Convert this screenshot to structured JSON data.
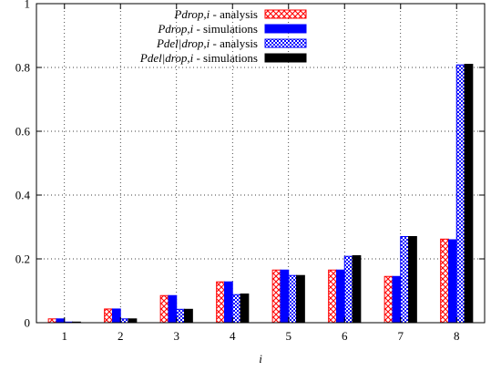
{
  "chart_data": {
    "type": "bar",
    "categories": [
      "1",
      "2",
      "3",
      "4",
      "5",
      "6",
      "7",
      "8"
    ],
    "xlabel": "i",
    "ylabel": "",
    "ylim": [
      0,
      1
    ],
    "yticks": [
      "0",
      "0.2",
      "0.4",
      "0.6",
      "0.8",
      "1"
    ],
    "grid": true,
    "legend_position": "top-center",
    "series": [
      {
        "name_italic": "Pdrop,i",
        "name_rest": " - analysis",
        "pattern": "crosshatch",
        "color": "#ff0000",
        "values": [
          0.012,
          0.043,
          0.085,
          0.128,
          0.165,
          0.165,
          0.145,
          0.262
        ]
      },
      {
        "name_italic": "Pdrop,i",
        "name_rest": " - simulations",
        "pattern": "solid",
        "color": "#0000ff",
        "values": [
          0.012,
          0.043,
          0.085,
          0.128,
          0.165,
          0.165,
          0.145,
          0.26
        ]
      },
      {
        "name_italic": "Pdel|drop,i",
        "name_rest": " - analysis",
        "pattern": "dots",
        "color": "#0000ff",
        "values": [
          0.002,
          0.012,
          0.042,
          0.088,
          0.148,
          0.208,
          0.27,
          0.808
        ]
      },
      {
        "name_italic": "Pdel|drop,i",
        "name_rest": " - simulations",
        "pattern": "solid",
        "color": "#000000",
        "values": [
          0.002,
          0.012,
          0.042,
          0.09,
          0.148,
          0.21,
          0.27,
          0.81
        ]
      }
    ]
  }
}
